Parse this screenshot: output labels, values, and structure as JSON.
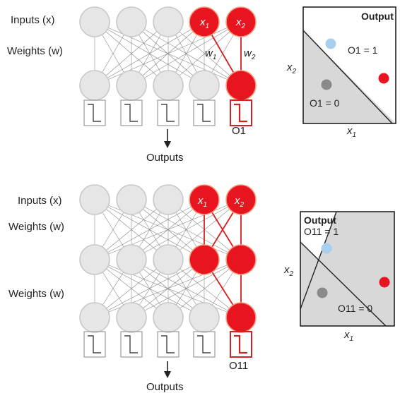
{
  "top": {
    "inputs_label": "Inputs (x)",
    "weights_label": "Weights (w)",
    "w1_label": "w",
    "w1_sub": "1",
    "w2_label": "w",
    "w2_sub": "2",
    "x1_label": "x",
    "x1_sub": "1",
    "x2_label": "x",
    "x2_sub": "2",
    "output_unit_label": "O1",
    "outputs_label": "Outputs",
    "plot": {
      "title": "Output",
      "y_axis": "x",
      "y_axis_sub": "2",
      "x_axis": "x",
      "x_axis_sub": "1",
      "region_upper": "O1 = 1",
      "region_lower": "O1 = 0"
    }
  },
  "bottom": {
    "inputs_label": "Inputs (x)",
    "weights_label_1": "Weights (w)",
    "weights_label_2": "Weights (w)",
    "x1_label": "x",
    "x1_sub": "1",
    "x2_label": "x",
    "x2_sub": "2",
    "output_unit_label": "O11",
    "outputs_label": "Outputs",
    "plot": {
      "title": "Output",
      "y_axis": "x",
      "y_axis_sub": "2",
      "x_axis": "x",
      "x_axis_sub": "1",
      "region_upper": "O11 = 1",
      "region_lower": "O11 = 0"
    }
  },
  "colors": {
    "active_fill": "#e8141f",
    "active_stroke": "#f4a080",
    "node_fill": "#e6e6e6",
    "node_stroke": "#c8c8c8",
    "edge": "#888888",
    "active_edge": "#d42020",
    "region_fill": "#d8d8d8",
    "blue_point": "#a8d0ee",
    "grey_point": "#8a8a8a",
    "red_point": "#e8141f"
  }
}
